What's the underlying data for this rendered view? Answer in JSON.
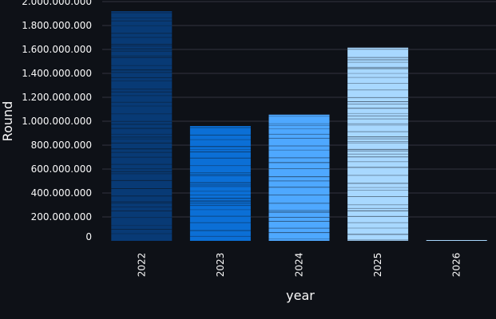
{
  "chart_data": {
    "type": "bar",
    "xlabel": "year",
    "ylabel": "Round",
    "categories": [
      "2022",
      "2023",
      "2024",
      "2025",
      "2026"
    ],
    "values": [
      1920000000,
      960000000,
      1055000000,
      1615000000,
      5000000
    ],
    "ylim": [
      0,
      2000000000
    ],
    "yticks": [
      0,
      200000000,
      400000000,
      600000000,
      800000000,
      1000000000,
      1200000000,
      1400000000,
      1600000000,
      1800000000,
      2000000000
    ],
    "ytick_labels": [
      "0",
      "200.000.000",
      "400.000.000",
      "600.000.000",
      "800.000.000",
      "1.000.000.000",
      "1.200.000.000",
      "1.400.000.000",
      "1.600.000.000",
      "1.800.000.000",
      "2.000.000.000"
    ],
    "grid": true,
    "bar_colors": [
      "#083a75",
      "#0b6fd6",
      "#4ea8ff",
      "#a8d8ff",
      "#a8d8ff"
    ],
    "segment_line_color": "#0e1117"
  }
}
